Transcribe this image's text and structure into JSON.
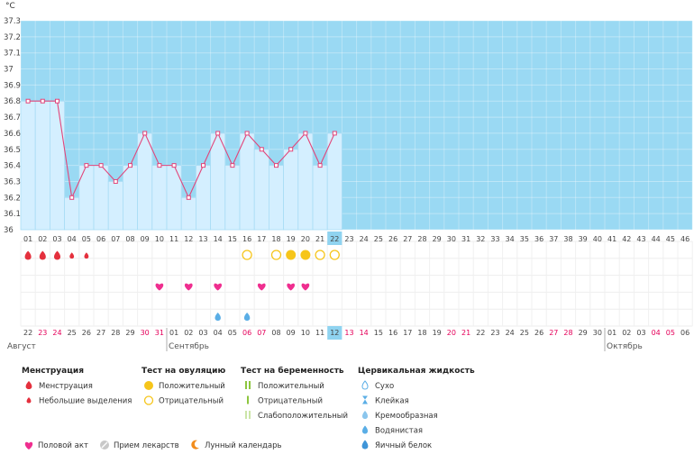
{
  "chart_data": {
    "type": "line",
    "y_unit": "°C",
    "y_ticks": [
      "36",
      "36.1",
      "36.2",
      "36.3",
      "36.4",
      "36.5",
      "36.6",
      "36.7",
      "36.8",
      "36.9",
      "37",
      "37.1",
      "37.2",
      "37.3"
    ],
    "ylim": [
      36,
      37.3
    ],
    "cycle_days": [
      "01",
      "02",
      "03",
      "04",
      "05",
      "06",
      "07",
      "08",
      "09",
      "10",
      "11",
      "12",
      "13",
      "14",
      "15",
      "16",
      "17",
      "18",
      "19",
      "20",
      "21",
      "22",
      "23",
      "24",
      "25",
      "26",
      "27",
      "28",
      "29",
      "30",
      "31",
      "32",
      "33",
      "34",
      "35",
      "36",
      "37",
      "38",
      "39",
      "40",
      "41",
      "42",
      "43",
      "44",
      "45",
      "46"
    ],
    "current_day_index": 21,
    "temperatures": [
      36.8,
      36.8,
      36.8,
      36.2,
      36.4,
      36.4,
      36.3,
      36.4,
      36.6,
      36.4,
      36.4,
      36.2,
      36.4,
      36.6,
      36.4,
      36.6,
      36.5,
      36.4,
      36.5,
      36.6,
      36.4,
      36.6
    ],
    "dates": [
      "22",
      "23",
      "24",
      "25",
      "26",
      "27",
      "28",
      "29",
      "30",
      "31",
      "01",
      "02",
      "03",
      "04",
      "05",
      "06",
      "07",
      "08",
      "09",
      "10",
      "11",
      "12",
      "13",
      "14",
      "15",
      "16",
      "17",
      "18",
      "19",
      "20",
      "21",
      "22",
      "23",
      "24",
      "25",
      "26",
      "27",
      "28",
      "29",
      "30",
      "01",
      "02",
      "03",
      "04",
      "05",
      "06"
    ],
    "weekend_date_indices": [
      1,
      2,
      8,
      9,
      15,
      16,
      22,
      23,
      29,
      30,
      36,
      37,
      43,
      44
    ],
    "months": [
      {
        "label": "Август",
        "start_index": 0
      },
      {
        "label": "Сентябрь",
        "start_index": 10
      },
      {
        "label": "Октябрь",
        "start_index": 40
      }
    ],
    "markers": {
      "menstruation_heavy": [
        0,
        1,
        2
      ],
      "menstruation_light": [
        3,
        4
      ],
      "ovulation_positive": [
        18,
        19
      ],
      "ovulation_negative": [
        15,
        17,
        20,
        21
      ],
      "intercourse": [
        9,
        11,
        13,
        16,
        18,
        19
      ],
      "cervical_watery": [
        13,
        15
      ]
    }
  },
  "legend": {
    "groups": [
      {
        "title": "Менструация",
        "items": [
          {
            "icon": "drop-heavy-icon",
            "label": "Менструация"
          },
          {
            "icon": "drop-light-icon",
            "label": "Небольшие выделения"
          }
        ]
      },
      {
        "title": "Тест на овуляцию",
        "items": [
          {
            "icon": "circle-filled-icon",
            "label": "Положительный"
          },
          {
            "icon": "circle-empty-icon",
            "label": "Отрицательный"
          }
        ]
      },
      {
        "title": "Тест на беременность",
        "items": [
          {
            "icon": "double-bar-icon",
            "label": "Положительный"
          },
          {
            "icon": "single-bar-icon",
            "label": "Отрицательный"
          },
          {
            "icon": "faint-bar-icon",
            "label": "Слабоположительный"
          }
        ]
      },
      {
        "title": "Цервикальная жидкость",
        "items": [
          {
            "icon": "dry-icon",
            "label": "Сухо"
          },
          {
            "icon": "sticky-icon",
            "label": "Клейкая"
          },
          {
            "icon": "creamy-icon",
            "label": "Кремообразная"
          },
          {
            "icon": "watery-icon",
            "label": "Водянистая"
          },
          {
            "icon": "eggwhite-icon",
            "label": "Яичный белок"
          }
        ]
      }
    ],
    "bottom_items": [
      {
        "icon": "heart-icon",
        "label": "Половой акт"
      },
      {
        "icon": "pill-icon",
        "label": "Прием лекарств"
      },
      {
        "icon": "moon-icon",
        "label": "Лунный календарь"
      }
    ]
  },
  "colors": {
    "plot_bg": "#9ad9f3",
    "bar_fill": "#d4efff",
    "bar_stroke": "#a8dcf5",
    "line": "#e2457a",
    "weekend": "#e5005a",
    "current_day_bg": "#8fd3f0",
    "ovulation_yellow": "#f6c51a",
    "menstruation_red": "#e4303d",
    "heart_pink": "#ef2e8f",
    "water_blue": "#5aaee6",
    "preg_green": "#8dc63f"
  }
}
